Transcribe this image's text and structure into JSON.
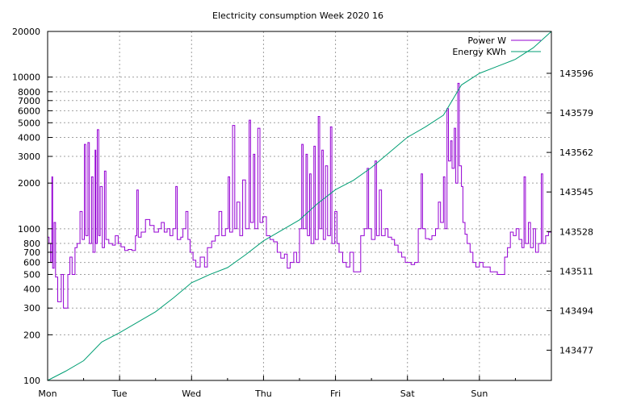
{
  "chart_data": {
    "type": "line",
    "title": "Electricity consumption Week 2020 16",
    "x_categories": [
      "Mon",
      "Tue",
      "Wed",
      "Thu",
      "Fri",
      "Sat",
      "Sun"
    ],
    "x_range_days": [
      0,
      7
    ],
    "y_left": {
      "scale": "log",
      "range": [
        100,
        20000
      ],
      "ticks": [
        100,
        200,
        300,
        400,
        500,
        600,
        700,
        800,
        1000,
        2000,
        3000,
        4000,
        5000,
        6000,
        7000,
        8000,
        10000,
        20000
      ]
    },
    "y_right": {
      "scale": "linear",
      "range": [
        143464,
        143614
      ],
      "ticks": [
        143477,
        143494,
        143511,
        143528,
        143545,
        143562,
        143579,
        143596
      ]
    },
    "grid": true,
    "legend_position": "top-right",
    "series": [
      {
        "name": "Power W",
        "axis": "left",
        "color": "#9400d3",
        "step": true,
        "points": [
          [
            0.0,
            880
          ],
          [
            0.02,
            800
          ],
          [
            0.04,
            600
          ],
          [
            0.06,
            2200
          ],
          [
            0.07,
            550
          ],
          [
            0.09,
            1100
          ],
          [
            0.11,
            480
          ],
          [
            0.14,
            330
          ],
          [
            0.19,
            500
          ],
          [
            0.22,
            300
          ],
          [
            0.28,
            500
          ],
          [
            0.31,
            650
          ],
          [
            0.34,
            500
          ],
          [
            0.38,
            750
          ],
          [
            0.41,
            800
          ],
          [
            0.45,
            1300
          ],
          [
            0.48,
            850
          ],
          [
            0.51,
            3600
          ],
          [
            0.53,
            900
          ],
          [
            0.56,
            3700
          ],
          [
            0.58,
            800
          ],
          [
            0.61,
            2200
          ],
          [
            0.63,
            700
          ],
          [
            0.66,
            3300
          ],
          [
            0.67,
            800
          ],
          [
            0.69,
            4500
          ],
          [
            0.71,
            900
          ],
          [
            0.73,
            1900
          ],
          [
            0.76,
            750
          ],
          [
            0.79,
            2400
          ],
          [
            0.81,
            850
          ],
          [
            0.85,
            800
          ],
          [
            0.9,
            780
          ],
          [
            0.94,
            900
          ],
          [
            0.98,
            800
          ],
          [
            1.02,
            760
          ],
          [
            1.07,
            720
          ],
          [
            1.12,
            730
          ],
          [
            1.17,
            720
          ],
          [
            1.22,
            900
          ],
          [
            1.24,
            1800
          ],
          [
            1.26,
            880
          ],
          [
            1.3,
            950
          ],
          [
            1.36,
            1150
          ],
          [
            1.42,
            1050
          ],
          [
            1.48,
            950
          ],
          [
            1.54,
            1000
          ],
          [
            1.58,
            1100
          ],
          [
            1.62,
            950
          ],
          [
            1.66,
            1000
          ],
          [
            1.7,
            900
          ],
          [
            1.74,
            1000
          ],
          [
            1.78,
            1900
          ],
          [
            1.8,
            850
          ],
          [
            1.85,
            880
          ],
          [
            1.88,
            1000
          ],
          [
            1.92,
            1300
          ],
          [
            1.95,
            850
          ],
          [
            1.98,
            700
          ],
          [
            2.02,
            620
          ],
          [
            2.06,
            560
          ],
          [
            2.12,
            650
          ],
          [
            2.18,
            560
          ],
          [
            2.22,
            750
          ],
          [
            2.28,
            830
          ],
          [
            2.33,
            900
          ],
          [
            2.38,
            1300
          ],
          [
            2.42,
            900
          ],
          [
            2.47,
            1000
          ],
          [
            2.51,
            2200
          ],
          [
            2.53,
            950
          ],
          [
            2.57,
            4800
          ],
          [
            2.6,
            1000
          ],
          [
            2.63,
            1500
          ],
          [
            2.67,
            900
          ],
          [
            2.71,
            2100
          ],
          [
            2.75,
            1000
          ],
          [
            2.8,
            5200
          ],
          [
            2.82,
            1100
          ],
          [
            2.86,
            3100
          ],
          [
            2.88,
            1000
          ],
          [
            2.92,
            4600
          ],
          [
            2.95,
            1100
          ],
          [
            2.99,
            1200
          ],
          [
            3.04,
            900
          ],
          [
            3.09,
            850
          ],
          [
            3.14,
            820
          ],
          [
            3.19,
            700
          ],
          [
            3.24,
            640
          ],
          [
            3.29,
            680
          ],
          [
            3.33,
            550
          ],
          [
            3.37,
            600
          ],
          [
            3.42,
            700
          ],
          [
            3.46,
            600
          ],
          [
            3.5,
            1000
          ],
          [
            3.53,
            3600
          ],
          [
            3.55,
            1000
          ],
          [
            3.59,
            3100
          ],
          [
            3.61,
            900
          ],
          [
            3.64,
            2300
          ],
          [
            3.66,
            800
          ],
          [
            3.7,
            3500
          ],
          [
            3.72,
            850
          ],
          [
            3.76,
            5500
          ],
          [
            3.78,
            1000
          ],
          [
            3.81,
            3300
          ],
          [
            3.83,
            850
          ],
          [
            3.86,
            2600
          ],
          [
            3.89,
            900
          ],
          [
            3.93,
            4700
          ],
          [
            3.95,
            800
          ],
          [
            3.99,
            1300
          ],
          [
            4.02,
            800
          ],
          [
            4.05,
            700
          ],
          [
            4.1,
            600
          ],
          [
            4.15,
            560
          ],
          [
            4.2,
            700
          ],
          [
            4.25,
            520
          ],
          [
            4.3,
            520
          ],
          [
            4.35,
            900
          ],
          [
            4.4,
            1000
          ],
          [
            4.44,
            2500
          ],
          [
            4.46,
            1000
          ],
          [
            4.5,
            850
          ],
          [
            4.55,
            2800
          ],
          [
            4.57,
            900
          ],
          [
            4.61,
            1800
          ],
          [
            4.64,
            900
          ],
          [
            4.69,
            1000
          ],
          [
            4.73,
            880
          ],
          [
            4.78,
            850
          ],
          [
            4.82,
            780
          ],
          [
            4.87,
            700
          ],
          [
            4.92,
            650
          ],
          [
            4.97,
            600
          ],
          [
            5.01,
            600
          ],
          [
            5.05,
            580
          ],
          [
            5.1,
            600
          ],
          [
            5.15,
            1000
          ],
          [
            5.19,
            2300
          ],
          [
            5.21,
            1000
          ],
          [
            5.25,
            860
          ],
          [
            5.3,
            850
          ],
          [
            5.34,
            900
          ],
          [
            5.39,
            1000
          ],
          [
            5.43,
            1500
          ],
          [
            5.46,
            1100
          ],
          [
            5.5,
            2200
          ],
          [
            5.52,
            1000
          ],
          [
            5.55,
            6200
          ],
          [
            5.57,
            2800
          ],
          [
            5.6,
            3800
          ],
          [
            5.62,
            2500
          ],
          [
            5.65,
            4600
          ],
          [
            5.67,
            2000
          ],
          [
            5.7,
            9100
          ],
          [
            5.72,
            2600
          ],
          [
            5.75,
            1900
          ],
          [
            5.77,
            1100
          ],
          [
            5.8,
            920
          ],
          [
            5.83,
            800
          ],
          [
            5.87,
            700
          ],
          [
            5.91,
            600
          ],
          [
            5.95,
            560
          ],
          [
            6.0,
            600
          ],
          [
            6.05,
            560
          ],
          [
            6.1,
            560
          ],
          [
            6.15,
            520
          ],
          [
            6.2,
            520
          ],
          [
            6.25,
            500
          ],
          [
            6.3,
            500
          ],
          [
            6.35,
            650
          ],
          [
            6.39,
            750
          ],
          [
            6.43,
            950
          ],
          [
            6.47,
            900
          ],
          [
            6.51,
            1000
          ],
          [
            6.55,
            850
          ],
          [
            6.59,
            750
          ],
          [
            6.62,
            2200
          ],
          [
            6.64,
            800
          ],
          [
            6.68,
            1100
          ],
          [
            6.71,
            750
          ],
          [
            6.75,
            1000
          ],
          [
            6.78,
            700
          ],
          [
            6.82,
            800
          ],
          [
            6.86,
            2300
          ],
          [
            6.88,
            800
          ],
          [
            6.92,
            900
          ],
          [
            6.96,
            950
          ],
          [
            7.0,
            950
          ]
        ]
      },
      {
        "name": "Energy KWh",
        "axis": "right",
        "color": "#009e73",
        "step": false,
        "points": [
          [
            0.0,
            143464.0
          ],
          [
            0.25,
            143468.0
          ],
          [
            0.5,
            143472.5
          ],
          [
            0.75,
            143480.5
          ],
          [
            1.0,
            143484.5
          ],
          [
            1.25,
            143489.0
          ],
          [
            1.5,
            143493.5
          ],
          [
            1.75,
            143499.5
          ],
          [
            2.0,
            143506.0
          ],
          [
            2.25,
            143509.5
          ],
          [
            2.5,
            143512.5
          ],
          [
            2.75,
            143518.0
          ],
          [
            3.0,
            143524.0
          ],
          [
            3.25,
            143528.5
          ],
          [
            3.5,
            143533.0
          ],
          [
            3.75,
            143540.0
          ],
          [
            4.0,
            143546.0
          ],
          [
            4.25,
            143550.0
          ],
          [
            4.5,
            143555.5
          ],
          [
            4.75,
            143562.0
          ],
          [
            5.0,
            143568.5
          ],
          [
            5.25,
            143573.0
          ],
          [
            5.5,
            143578.0
          ],
          [
            5.75,
            143591.0
          ],
          [
            6.0,
            143596.0
          ],
          [
            6.25,
            143599.0
          ],
          [
            6.5,
            143602.0
          ],
          [
            6.75,
            143607.0
          ],
          [
            7.0,
            143614.0
          ]
        ]
      }
    ]
  }
}
